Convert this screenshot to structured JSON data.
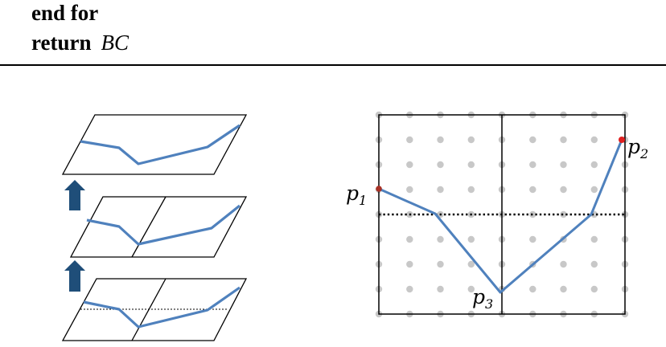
{
  "algorithm": {
    "line1_keyword": "end for",
    "line2_keyword": "return",
    "line2_variable": "BC"
  },
  "grid_labels": {
    "p1": {
      "base": "p",
      "sub": "1"
    },
    "p2": {
      "base": "p",
      "sub": "2"
    },
    "p3": {
      "base": "p",
      "sub": "3"
    }
  },
  "colors": {
    "path": "#4f81bd",
    "arrow": "#1f4e79",
    "dots": "#c8c8c8",
    "endpoint": "#c0392b"
  }
}
